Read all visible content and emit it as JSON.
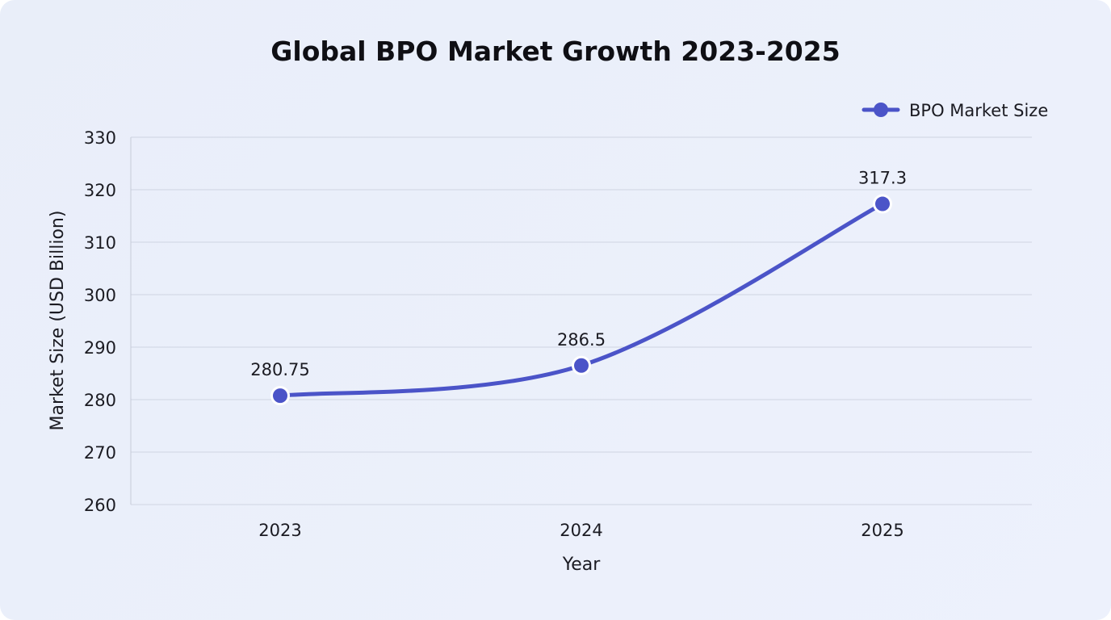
{
  "chart_data": {
    "type": "line",
    "title": "Global BPO Market Growth 2023-2025",
    "xlabel": "Year",
    "ylabel": "Market Size (USD Billion)",
    "categories": [
      "2023",
      "2024",
      "2025"
    ],
    "series": [
      {
        "name": "BPO Market Size",
        "values": [
          280.75,
          286.5,
          317.3
        ],
        "data_labels": [
          "280.75",
          "286.5",
          "317.3"
        ]
      }
    ],
    "ylim": [
      260,
      330
    ],
    "yticks": [
      "260",
      "270",
      "280",
      "290",
      "300",
      "310",
      "320",
      "330"
    ],
    "grid": true,
    "legend_position": "top-right",
    "colors": {
      "line": "#4b54c8",
      "grid": "#cfd4e2",
      "marker_outline": "#ffffff"
    }
  }
}
